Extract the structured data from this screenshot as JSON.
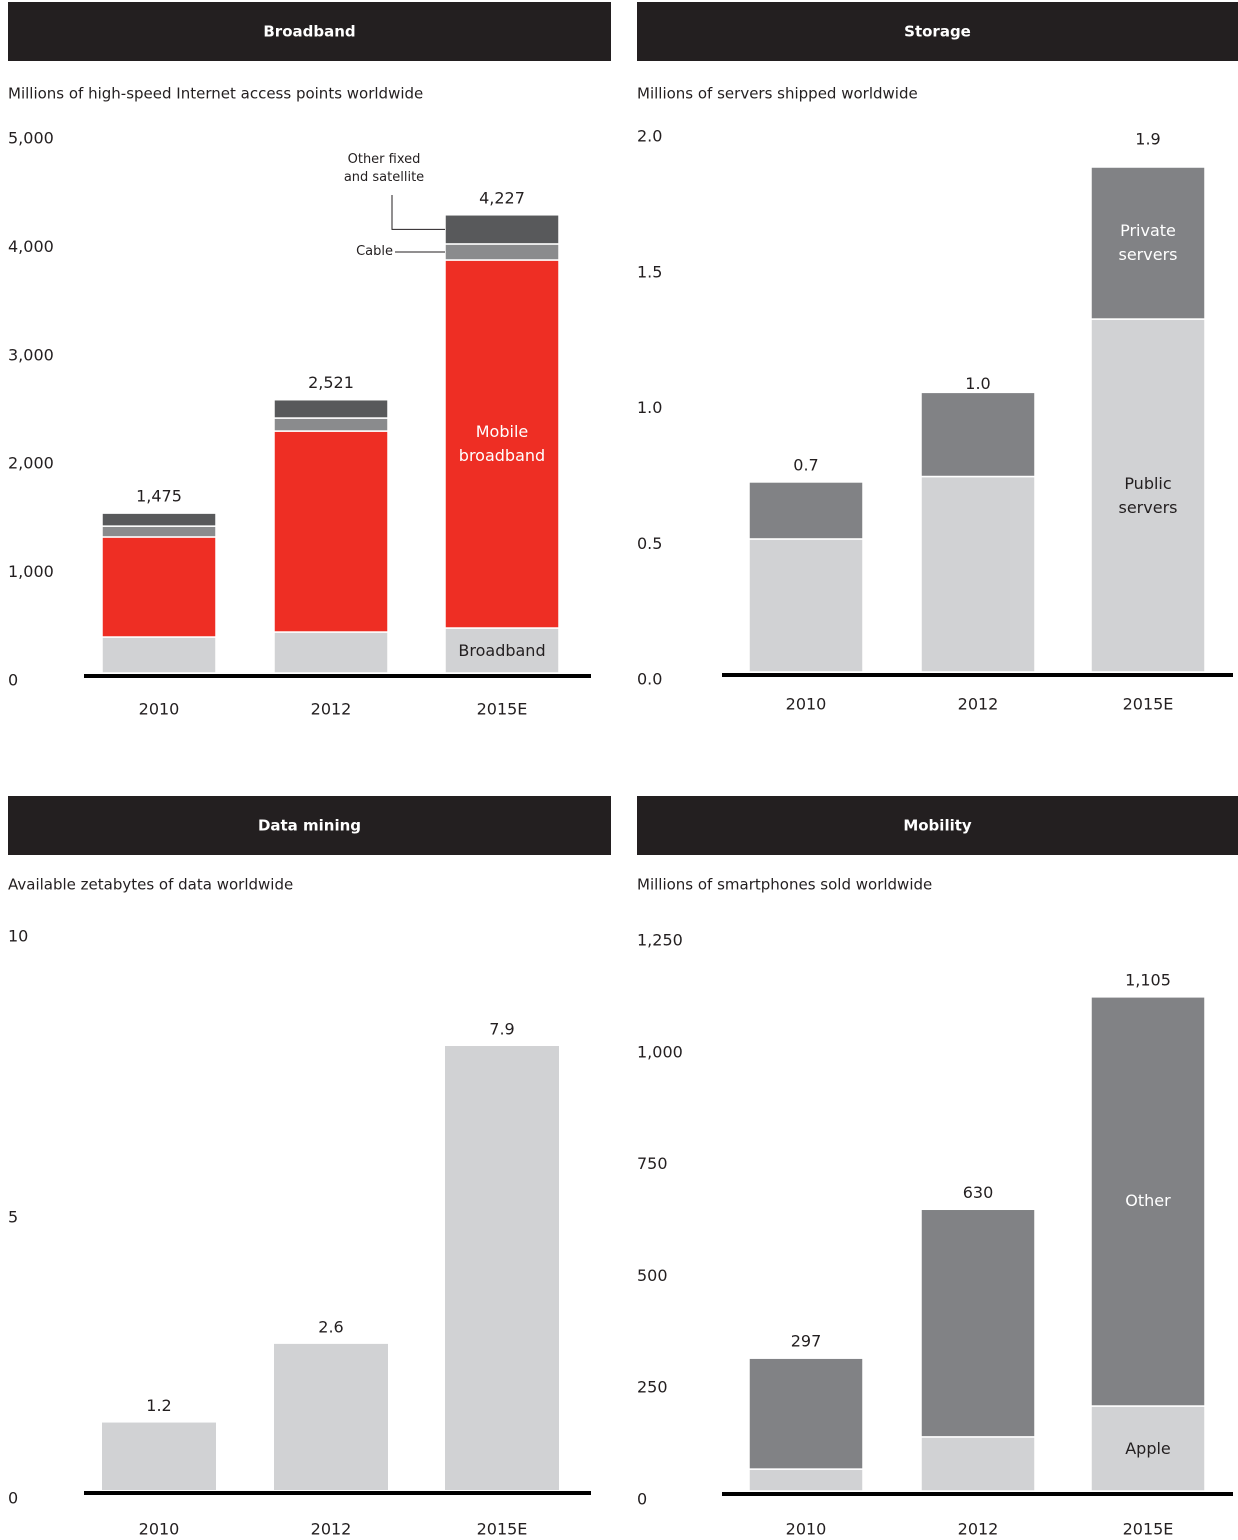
{
  "chart_data": [
    {
      "type": "bar",
      "stacked": true,
      "title": "Broadband",
      "subtitle": "Millions of high-speed Internet access points worldwide",
      "categories": [
        "2010",
        "2012",
        "2015E"
      ],
      "series": [
        {
          "name": "Broadband",
          "color": "#d1d2d4",
          "values": [
            332,
            378,
            415
          ]
        },
        {
          "name": "Mobile broadband",
          "color": "#ee2e24",
          "values": [
            923,
            1854,
            3395
          ]
        },
        {
          "name": "Cable",
          "color": "#8a8b8d",
          "values": [
            100,
            120,
            148
          ]
        },
        {
          "name": "Other fixed and satellite",
          "color": "#58595b",
          "values": [
            120,
            169,
            269
          ]
        }
      ],
      "totals": {
        "values": [
          1475,
          2521,
          4227
        ],
        "value_labels": [
          "1,475",
          "2,521",
          "4,227"
        ]
      },
      "ylim": [
        0,
        5000
      ],
      "yticks": [
        0,
        {
          "value": 1000,
          "label": "1,000"
        },
        {
          "value": 2000,
          "label": "2,000"
        },
        {
          "value": 3000,
          "label": "3,000"
        },
        {
          "value": 4000,
          "label": "4,000"
        },
        {
          "value": 5000,
          "label": "5,000"
        }
      ]
    },
    {
      "type": "bar",
      "stacked": true,
      "title": "Storage",
      "subtitle": "Millions of servers shipped worldwide",
      "categories": [
        "2010",
        "2012",
        "2015E"
      ],
      "series": [
        {
          "name": "Public servers",
          "color": "#d1d2d4",
          "values": [
            0.49,
            0.72,
            1.3
          ]
        },
        {
          "name": "Private servers",
          "color": "#818285",
          "values": [
            0.21,
            0.31,
            0.56
          ]
        }
      ],
      "totals": {
        "values": [
          0.7,
          1.0,
          1.9
        ],
        "value_labels": [
          "0.7",
          "1.0",
          "1.9"
        ]
      },
      "ylim": [
        0,
        2
      ],
      "yticks": [
        {
          "value": 0,
          "label": "0.0"
        },
        0.5,
        {
          "value": 1,
          "label": "1.0"
        },
        1.5,
        {
          "value": 2,
          "label": "2.0"
        }
      ]
    },
    {
      "type": "bar",
      "title": "Data mining",
      "subtitle": "Available zetabytes of data worldwide",
      "categories": [
        "2010",
        "2012",
        "2015E"
      ],
      "values": [
        1.2,
        2.6,
        7.9
      ],
      "color": "#d1d2d4",
      "ylim": [
        0,
        10
      ],
      "yticks": [
        0,
        5,
        10
      ]
    },
    {
      "type": "bar",
      "stacked": true,
      "title": "Mobility",
      "subtitle": "Millions of smartphones sold worldwide",
      "categories": [
        "2010",
        "2012",
        "2015E"
      ],
      "series": [
        {
          "name": "Apple",
          "color": "#d1d2d4",
          "values": [
            49,
            121,
            190
          ]
        },
        {
          "name": "Other",
          "color": "#818285",
          "values": [
            248,
            509,
            915
          ]
        }
      ],
      "totals": {
        "values": [
          297,
          630,
          1105
        ],
        "value_labels": [
          "297",
          "630",
          "1,105"
        ]
      },
      "ylim": [
        0,
        1250
      ],
      "yticks": [
        0,
        250,
        500,
        750,
        {
          "value": 1000,
          "label": "1,000"
        },
        {
          "value": 1250,
          "label": "1,250"
        }
      ]
    }
  ]
}
